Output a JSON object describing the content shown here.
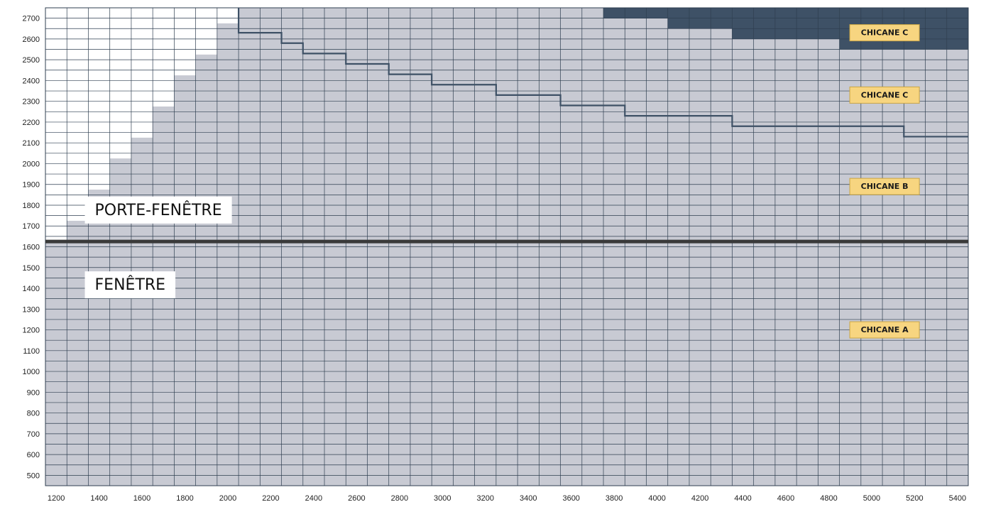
{
  "chart_data": {
    "type": "heatmap",
    "title": "",
    "xlabel": "",
    "ylabel": "",
    "x_range": [
      1150,
      5450
    ],
    "y_range": [
      450,
      2750
    ],
    "cell_width": 100,
    "cell_height": 50,
    "x_ticks": [
      1200,
      1400,
      1600,
      1800,
      2000,
      2200,
      2400,
      2600,
      2800,
      3000,
      3200,
      3400,
      3600,
      3800,
      4000,
      4200,
      4400,
      4600,
      4800,
      5000,
      5200,
      5400
    ],
    "y_ticks": [
      500,
      600,
      700,
      800,
      900,
      1000,
      1100,
      1200,
      1300,
      1400,
      1500,
      1600,
      1700,
      1800,
      1900,
      2000,
      2100,
      2200,
      2300,
      2400,
      2500,
      2600,
      2700
    ],
    "colors": {
      "available": "#c8cad3",
      "unavailable": "#ffffff",
      "chicane_c_zone": "#3e5166",
      "grid_line": "#2f3f50",
      "step_line": "#3e5166",
      "divider": "#3a3a3a",
      "badge_fill": "#f7d580",
      "badge_border": "#c9a545"
    },
    "available_max_height": [
      {
        "x_from": 1150,
        "x_to": 1250,
        "max_y": 1625
      },
      {
        "x_from": 1250,
        "x_to": 1350,
        "max_y": 1725
      },
      {
        "x_from": 1350,
        "x_to": 1450,
        "max_y": 1875
      },
      {
        "x_from": 1450,
        "x_to": 1550,
        "max_y": 2025
      },
      {
        "x_from": 1550,
        "x_to": 1650,
        "max_y": 2125
      },
      {
        "x_from": 1650,
        "x_to": 1750,
        "max_y": 2275
      },
      {
        "x_from": 1750,
        "x_to": 1850,
        "max_y": 2425
      },
      {
        "x_from": 1850,
        "x_to": 1950,
        "max_y": 2525
      },
      {
        "x_from": 1950,
        "x_to": 2050,
        "max_y": 2675
      },
      {
        "x_from": 2050,
        "x_to": 5450,
        "max_y": 2750
      }
    ],
    "chicane_c_zone": [
      {
        "x_from": 3750,
        "x_to": 4050,
        "y_from": 2700,
        "y_to": 2750
      },
      {
        "x_from": 4050,
        "x_to": 4350,
        "y_from": 2650,
        "y_to": 2750
      },
      {
        "x_from": 4350,
        "x_to": 4850,
        "y_from": 2600,
        "y_to": 2750
      },
      {
        "x_from": 4850,
        "x_to": 5450,
        "y_from": 2550,
        "y_to": 2750
      }
    ],
    "chicane_b_limit": [
      {
        "x_from": 2050,
        "x_to": 2250,
        "y": 2630
      },
      {
        "x_from": 2250,
        "x_to": 2350,
        "y": 2580
      },
      {
        "x_from": 2350,
        "x_to": 2550,
        "y": 2530
      },
      {
        "x_from": 2550,
        "x_to": 2750,
        "y": 2480
      },
      {
        "x_from": 2750,
        "x_to": 2950,
        "y": 2430
      },
      {
        "x_from": 2950,
        "x_to": 3250,
        "y": 2380
      },
      {
        "x_from": 3250,
        "x_to": 3550,
        "y": 2330
      },
      {
        "x_from": 3550,
        "x_to": 3850,
        "y": 2280
      },
      {
        "x_from": 3850,
        "x_to": 4350,
        "y": 2230
      },
      {
        "x_from": 4350,
        "x_to": 5150,
        "y": 2180
      },
      {
        "x_from": 5150,
        "x_to": 5450,
        "y": 2130
      }
    ],
    "divider_y": 1625,
    "zones": {
      "porte_fenetre": {
        "label": "PORTE-FENÊTRE",
        "x": 1380,
        "y": 1775
      },
      "fenetre": {
        "label": "FENÊTRE",
        "x": 1380,
        "y": 1415
      }
    },
    "badges": [
      {
        "label": "CHICANE C",
        "x": 5060,
        "y": 2630
      },
      {
        "label": "CHICANE C",
        "x": 5060,
        "y": 2330
      },
      {
        "label": "CHICANE B",
        "x": 5060,
        "y": 1890
      },
      {
        "label": "CHICANE A",
        "x": 5060,
        "y": 1200
      }
    ]
  }
}
